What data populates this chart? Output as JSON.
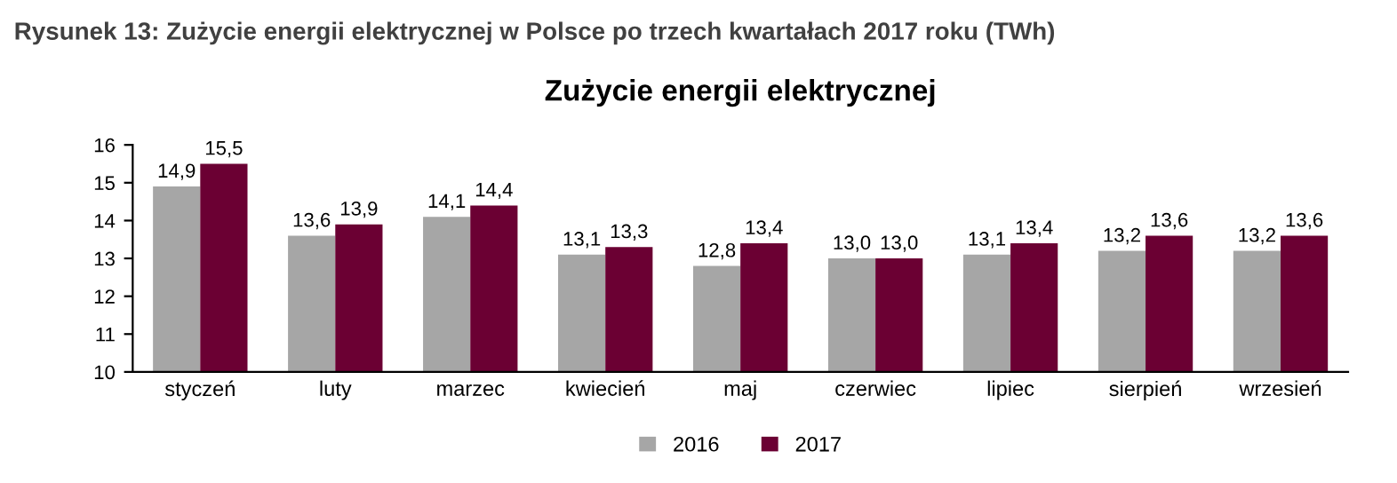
{
  "chart_data": {
    "type": "bar",
    "title": "Zużycie energii elektrycznej",
    "subtitle": "Rysunek 13: Zużycie energii elektrycznej w Polsce po trzech kwartałach 2017 roku (TWh)",
    "categories": [
      "styczeń",
      "luty",
      "marzec",
      "kwiecień",
      "maj",
      "czerwiec",
      "lipiec",
      "sierpień",
      "wrzesień"
    ],
    "series": [
      {
        "name": "2016",
        "color": "#a6a6a6",
        "values": [
          14.9,
          13.6,
          14.1,
          13.1,
          12.8,
          13.0,
          13.1,
          13.2,
          13.2
        ],
        "value_labels": [
          "14,9",
          "13,6",
          "14,1",
          "13,1",
          "12,8",
          "13,0",
          "13,1",
          "13,2",
          "13,2"
        ]
      },
      {
        "name": "2017",
        "color": "#6b0033",
        "values": [
          15.5,
          13.9,
          14.4,
          13.3,
          13.4,
          13.0,
          13.4,
          13.6,
          13.6
        ],
        "value_labels": [
          "15,5",
          "13,9",
          "14,4",
          "13,3",
          "13,4",
          "13,0",
          "13,4",
          "13,6",
          "13,6"
        ]
      }
    ],
    "ylim": [
      10,
      16
    ],
    "yticks": [
      10,
      11,
      12,
      13,
      14,
      15,
      16
    ],
    "grid": false,
    "legend": "bottom"
  }
}
